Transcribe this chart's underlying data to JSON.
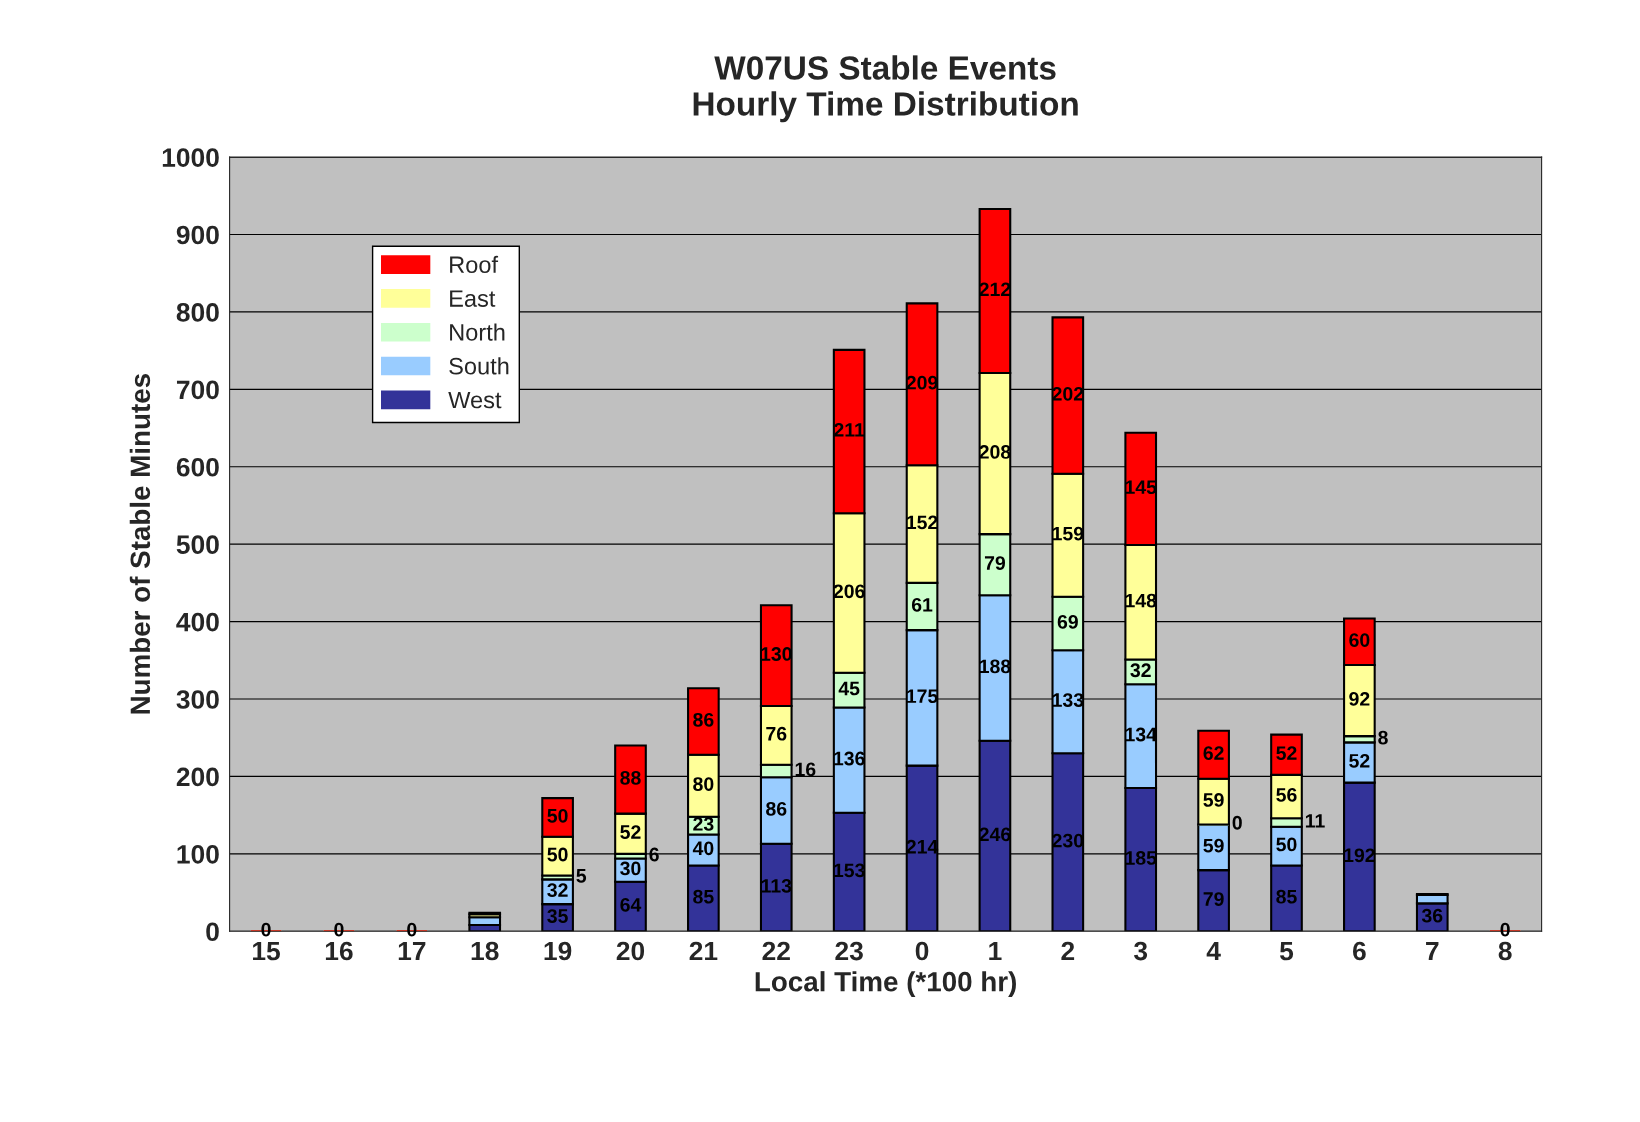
{
  "chart_data": {
    "type": "bar",
    "stacked": true,
    "title": "W07US Stable Events\nHourly Time Distribution",
    "xlabel": "Local Time (*100 hr)",
    "ylabel": "Number of Stable Minutes",
    "categories": [
      "15",
      "16",
      "17",
      "18",
      "19",
      "20",
      "21",
      "22",
      "23",
      "0",
      "1",
      "2",
      "3",
      "4",
      "5",
      "6",
      "7",
      "8"
    ],
    "series": [
      {
        "name": "West",
        "color": "#333399",
        "values": [
          0,
          0,
          0,
          8,
          35,
          64,
          85,
          113,
          153,
          214,
          246,
          230,
          185,
          79,
          85,
          192,
          36,
          0
        ],
        "value_labels": [
          "0",
          "0",
          "0",
          null,
          "35",
          "64",
          "85",
          "113",
          "153",
          "214",
          "246",
          "230",
          "185",
          "79",
          "85",
          "192",
          "36",
          "0"
        ]
      },
      {
        "name": "South",
        "color": "#99ccff",
        "values": [
          0,
          0,
          0,
          10,
          32,
          30,
          40,
          86,
          136,
          175,
          188,
          133,
          134,
          59,
          50,
          52,
          11,
          0
        ],
        "value_labels": [
          null,
          null,
          null,
          null,
          "32",
          "30",
          "40",
          "86",
          "136",
          "175",
          "188",
          "133",
          "134",
          "59",
          "50",
          "52",
          null,
          null
        ]
      },
      {
        "name": "North",
        "color": "#ccffcc",
        "values": [
          0,
          0,
          0,
          null,
          5,
          6,
          23,
          16,
          45,
          61,
          79,
          69,
          32,
          0,
          11,
          8,
          0,
          0
        ],
        "value_labels": [
          null,
          null,
          null,
          null,
          "5",
          "6",
          "23",
          "16",
          "45",
          "61",
          "79",
          "69",
          "32",
          "0",
          "11",
          "8",
          null,
          null
        ]
      },
      {
        "name": "East",
        "color": "#ffff99",
        "values": [
          0,
          0,
          0,
          4,
          50,
          52,
          80,
          76,
          206,
          152,
          208,
          159,
          148,
          59,
          56,
          92,
          0,
          0
        ],
        "value_labels": [
          null,
          null,
          null,
          null,
          "50",
          "52",
          "80",
          "76",
          "206",
          "152",
          "208",
          "159",
          "148",
          "59",
          "56",
          "92",
          null,
          null
        ]
      },
      {
        "name": "Roof",
        "color": "#ff0000",
        "values": [
          0,
          0,
          0,
          2,
          50,
          88,
          86,
          130,
          211,
          209,
          212,
          202,
          145,
          62,
          52,
          60,
          1,
          0
        ],
        "value_labels": [
          null,
          null,
          null,
          null,
          "50",
          "88",
          "86",
          "130",
          "211",
          "209",
          "212",
          "202",
          "145",
          "62",
          "52",
          "60",
          null,
          null
        ]
      }
    ],
    "ylim": [
      0,
      1000
    ],
    "yticks": [
      0,
      100,
      200,
      300,
      400,
      500,
      600,
      700,
      800,
      900,
      1000
    ],
    "grid": "y",
    "legend": "top left"
  }
}
